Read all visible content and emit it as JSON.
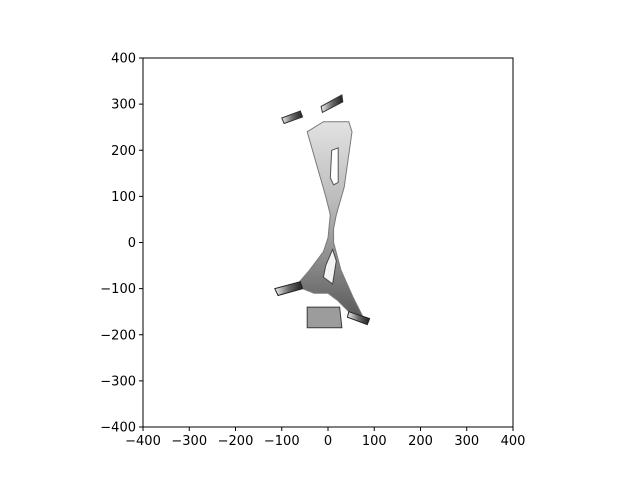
{
  "chart_data": {
    "type": "image",
    "title": "",
    "xlabel": "",
    "ylabel": "",
    "xlim": [
      -400,
      400
    ],
    "ylim": [
      -400,
      400
    ],
    "xticks": [
      -400,
      -300,
      -200,
      -100,
      0,
      100,
      200,
      300,
      400
    ],
    "yticks": [
      -400,
      -300,
      -200,
      -100,
      0,
      100,
      200,
      300,
      400
    ],
    "xtick_labels": [
      "−400",
      "−300",
      "−200",
      "−100",
      "0",
      "100",
      "200",
      "300",
      "400"
    ],
    "ytick_labels": [
      "−400",
      "−300",
      "−200",
      "−100",
      "0",
      "100",
      "200",
      "300",
      "400"
    ],
    "grid": false,
    "legend": "none",
    "colors": {
      "frame": "#000000",
      "part_light": "#d8d8d8",
      "part_mid": "#9a9a9a",
      "part_dark": "#2a2a2a"
    },
    "rendered_object": {
      "description_icon": "metal-bracket-render",
      "main_plate_outline": [
        [
          -45,
          240
        ],
        [
          -10,
          262
        ],
        [
          45,
          262
        ],
        [
          52,
          240
        ],
        [
          35,
          120
        ],
        [
          18,
          60
        ],
        [
          12,
          30
        ],
        [
          12,
          0
        ],
        [
          28,
          -60
        ],
        [
          55,
          -120
        ],
        [
          75,
          -160
        ],
        [
          45,
          -150
        ],
        [
          20,
          -125
        ],
        [
          0,
          -110
        ],
        [
          -30,
          -110
        ],
        [
          -55,
          -100
        ],
        [
          -70,
          -95
        ],
        [
          -40,
          -60
        ],
        [
          -10,
          -20
        ],
        [
          0,
          10
        ],
        [
          5,
          60
        ],
        [
          -5,
          100
        ]
      ],
      "upper_slot": [
        [
          8,
          200
        ],
        [
          22,
          205
        ],
        [
          22,
          130
        ],
        [
          12,
          125
        ],
        [
          5,
          140
        ]
      ],
      "lower_slot": [
        [
          10,
          -15
        ],
        [
          18,
          -40
        ],
        [
          10,
          -90
        ],
        [
          -10,
          -75
        ],
        [
          -5,
          -50
        ]
      ],
      "left_top_flange": [
        [
          -100,
          270
        ],
        [
          -60,
          285
        ],
        [
          -55,
          272
        ],
        [
          -95,
          258
        ]
      ],
      "right_top_flange": [
        [
          -15,
          295
        ],
        [
          30,
          320
        ],
        [
          32,
          305
        ],
        [
          -12,
          282
        ]
      ],
      "left_bottom_flange": [
        [
          -115,
          -100
        ],
        [
          -60,
          -85
        ],
        [
          -55,
          -100
        ],
        [
          -108,
          -115
        ]
      ],
      "right_bottom_flange": [
        [
          45,
          -150
        ],
        [
          90,
          -165
        ],
        [
          85,
          -178
        ],
        [
          42,
          -162
        ]
      ],
      "bottom_block": [
        [
          -45,
          -140
        ],
        [
          25,
          -140
        ],
        [
          30,
          -185
        ],
        [
          -45,
          -185
        ]
      ]
    }
  }
}
